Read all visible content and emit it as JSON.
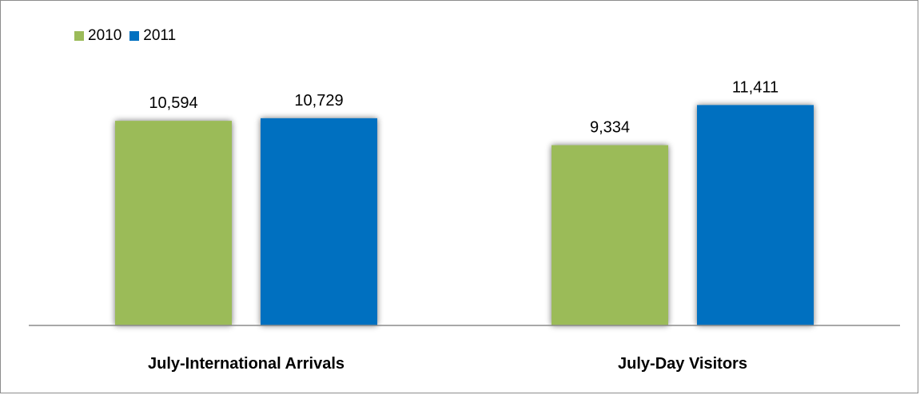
{
  "chart_data": {
    "type": "bar",
    "categories": [
      "July-International Arrivals",
      "July-Day Visitors"
    ],
    "series": [
      {
        "name": "2010",
        "color": "#9bbb59",
        "values": [
          10594,
          9334
        ],
        "labels": [
          "10,594",
          "9,334"
        ]
      },
      {
        "name": "2011",
        "color": "#0070c0",
        "values": [
          10729,
          11411
        ],
        "labels": [
          "10,729",
          "11,411"
        ]
      }
    ],
    "title": "",
    "xlabel": "",
    "ylabel": "",
    "ylim": [
      0,
      13000
    ],
    "grid": false,
    "legend_position": "top-left"
  }
}
